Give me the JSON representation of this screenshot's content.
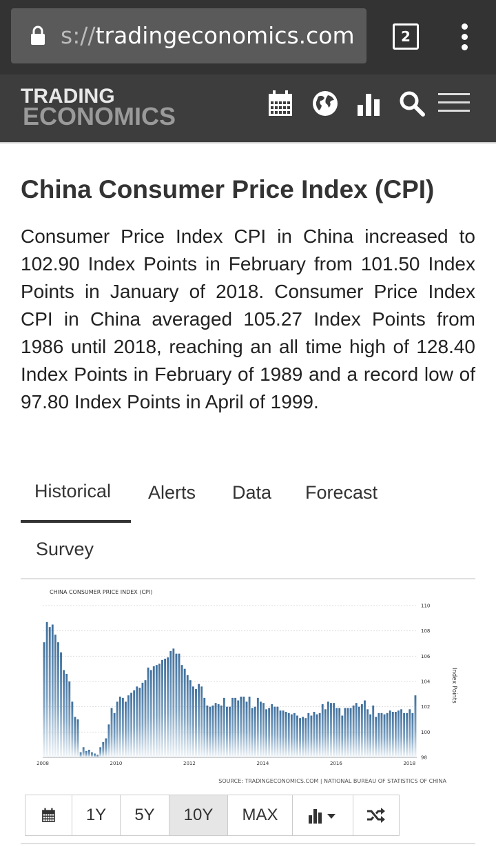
{
  "browser": {
    "url_prefix": "s://",
    "url_domain": "tradingeconomics.com",
    "tab_count": "2"
  },
  "site": {
    "logo_line1": "TRADING",
    "logo_line2": "ECONOMICS",
    "icons": [
      "calendar-icon",
      "globe-icon",
      "bar-chart-icon",
      "search-icon",
      "menu-icon"
    ]
  },
  "page": {
    "title": "China Consumer Price Index (CPI)",
    "description": "Consumer Price Index CPI in China increased to 102.90 Index Points in February from 101.50 Index Points in January of 2018. Consumer Price Index CPI in China averaged 105.27 Index Points from 1986 until 2018, reaching an all time high of 128.40 Index Points in February of 1989 and a record low of 97.80 Index Points in April of 1999."
  },
  "tabs": [
    {
      "label": "Historical",
      "active": true
    },
    {
      "label": "Alerts"
    },
    {
      "label": "Data"
    },
    {
      "label": "Forecast"
    },
    {
      "label": "Survey"
    }
  ],
  "chart_data": {
    "type": "bar",
    "title": "CHINA CONSUMER PRICE INDEX (CPI)",
    "ylabel": "Index Points",
    "xlabel": "",
    "ylim": [
      98,
      110
    ],
    "y_ticks": [
      "98",
      "100",
      "102",
      "104",
      "106",
      "108",
      "110"
    ],
    "x_ticks": [
      "2008",
      "2010",
      "2012",
      "2014",
      "2016",
      "2018"
    ],
    "x_range": [
      2008.0,
      2018.2
    ],
    "grid": true,
    "source": "SOURCE: TRADINGECONOMICS.COM | NATIONAL BUREAU OF STATISTICS OF CHINA",
    "bar_color": "#4a7aa6",
    "values": [
      107.1,
      108.7,
      108.3,
      108.5,
      107.7,
      107.1,
      106.3,
      104.9,
      104.6,
      104.0,
      102.4,
      101.2,
      101.0,
      98.4,
      98.8,
      98.5,
      98.6,
      98.4,
      98.3,
      98.2,
      98.8,
      99.2,
      99.5,
      100.6,
      101.9,
      101.5,
      102.4,
      102.8,
      102.7,
      102.4,
      102.9,
      103.1,
      103.3,
      103.6,
      103.5,
      103.9,
      104.1,
      105.1,
      104.9,
      105.2,
      105.3,
      105.4,
      105.7,
      105.8,
      105.9,
      106.4,
      106.6,
      106.2,
      106.2,
      105.3,
      105.0,
      104.5,
      104.1,
      103.6,
      103.4,
      103.8,
      103.6,
      102.7,
      102.1,
      102.0,
      102.1,
      102.3,
      102.2,
      102.1,
      102.7,
      102.0,
      102.0,
      102.7,
      102.7,
      102.5,
      102.8,
      102.8,
      102.4,
      102.8,
      101.9,
      102.0,
      102.7,
      102.4,
      102.3,
      101.8,
      101.9,
      102.2,
      102.0,
      102.0,
      101.7,
      101.7,
      101.6,
      101.5,
      101.4,
      101.5,
      101.3,
      101.1,
      101.2,
      101.1,
      101.5,
      101.3,
      101.6,
      101.4,
      101.5,
      102.2,
      101.8,
      102.4,
      102.3,
      102.3,
      101.9,
      101.9,
      101.3,
      101.9,
      101.9,
      101.9,
      102.1,
      102.3,
      102.0,
      102.2,
      102.5,
      101.8,
      101.4,
      102.1,
      101.2,
      101.5,
      101.5,
      101.4,
      101.5,
      101.7,
      101.6,
      101.6,
      101.7,
      101.8,
      101.5,
      101.5,
      101.8,
      101.5,
      102.9
    ]
  },
  "range_buttons": [
    {
      "label": "",
      "icon": "calendar-icon"
    },
    {
      "label": "1Y"
    },
    {
      "label": "5Y"
    },
    {
      "label": "10Y",
      "active": true
    },
    {
      "label": "MAX"
    },
    {
      "label": "",
      "icon": "chart-type-icon"
    },
    {
      "label": "",
      "icon": "shuffle-icon"
    }
  ]
}
